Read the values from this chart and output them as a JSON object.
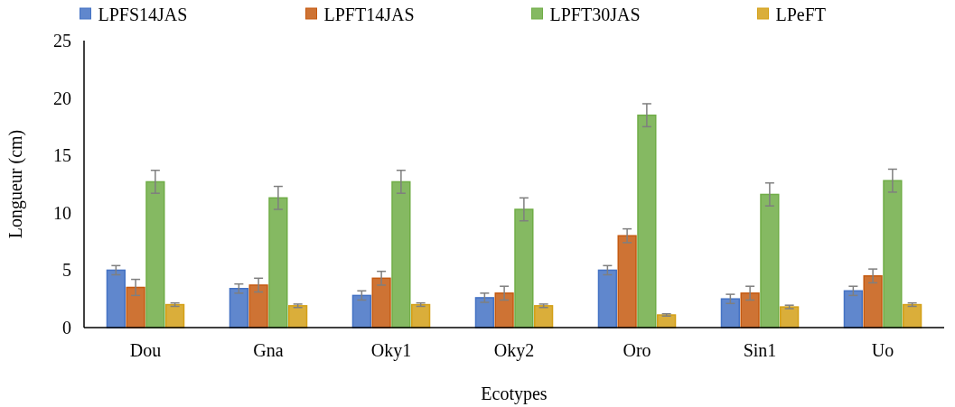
{
  "chart_data": {
    "type": "bar",
    "xlabel": "Ecotypes",
    "ylabel": "Longueur (cm)",
    "categories": [
      "Dou",
      "Gna",
      "Oky1",
      "Oky2",
      "Oro",
      "Sin1",
      "Uo"
    ],
    "series": [
      {
        "name": "LPFS14JAS",
        "color": "#4472c4",
        "values": [
          5.0,
          3.4,
          2.8,
          2.6,
          5.0,
          2.5,
          3.2
        ],
        "errors": [
          0.4,
          0.4,
          0.4,
          0.4,
          0.4,
          0.4,
          0.4
        ]
      },
      {
        "name": "LPFT14JAS",
        "color": "#c55a11",
        "values": [
          3.5,
          3.7,
          4.3,
          3.0,
          8.0,
          3.0,
          4.5
        ],
        "errors": [
          0.7,
          0.6,
          0.6,
          0.6,
          0.6,
          0.6,
          0.6
        ]
      },
      {
        "name": "LPFT30JAS",
        "color": "#70ad47",
        "values": [
          12.7,
          11.3,
          12.7,
          10.3,
          18.5,
          11.6,
          12.8
        ],
        "errors": [
          1.0,
          1.0,
          1.0,
          1.0,
          1.0,
          1.0,
          1.0
        ]
      },
      {
        "name": "LPeFT",
        "color": "#d4a017",
        "values": [
          2.0,
          1.9,
          2.0,
          1.9,
          1.1,
          1.8,
          2.0
        ],
        "errors": [
          0.15,
          0.15,
          0.15,
          0.15,
          0.1,
          0.15,
          0.15
        ]
      }
    ],
    "ylim": [
      0,
      25
    ],
    "yticks": [
      0,
      5,
      10,
      15,
      20,
      25
    ],
    "grid": false,
    "legend": "top"
  }
}
